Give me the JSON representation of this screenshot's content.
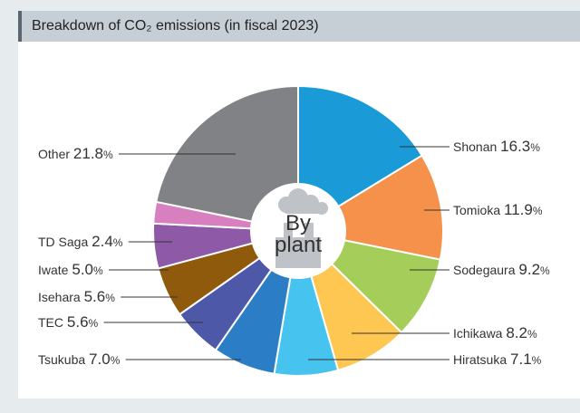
{
  "header": {
    "title": "Breakdown of CO₂ emissions (in fiscal 2023)"
  },
  "chart_data": {
    "type": "pie",
    "title": "Breakdown of CO₂ emissions (in fiscal 2023)",
    "center_label": [
      "By",
      "plant"
    ],
    "unit": "%",
    "slices": [
      {
        "label": "Shonan",
        "value": 16.3,
        "color": "#1a9ad6"
      },
      {
        "label": "Tomioka",
        "value": 11.9,
        "color": "#f5914a"
      },
      {
        "label": "Sodegaura",
        "value": 9.2,
        "color": "#a5cd5a"
      },
      {
        "label": "Ichikawa",
        "value": 8.2,
        "color": "#fdc751"
      },
      {
        "label": "Hiratsuka",
        "value": 7.1,
        "color": "#46c3ee"
      },
      {
        "label": "Tsukuba",
        "value": 7.0,
        "color": "#2b7ec6"
      },
      {
        "label": "TEC",
        "value": 5.6,
        "color": "#4e58a8"
      },
      {
        "label": "Isehara",
        "value": 5.6,
        "color": "#8f5a0c"
      },
      {
        "label": "Iwate",
        "value": 5.0,
        "color": "#8e5aa8"
      },
      {
        "label": "TD Saga",
        "value": 2.4,
        "color": "#d87fc0"
      },
      {
        "label": "Other",
        "value": 21.8,
        "color": "#808285"
      }
    ]
  }
}
